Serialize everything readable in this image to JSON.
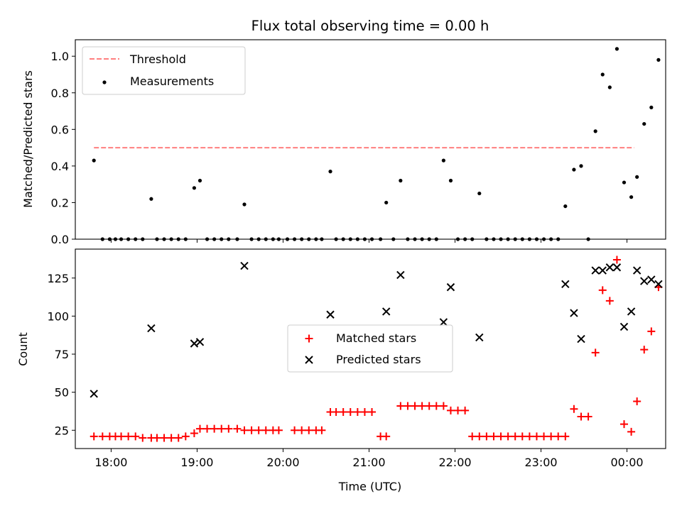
{
  "chart_data": [
    {
      "type": "scatter",
      "title": "Flux total observing time = 0.00 h",
      "xlabel": "",
      "ylabel": "Matched/Predicted stars",
      "xlim": [
        "17:35",
        "00:27"
      ],
      "ylim": [
        0,
        1.09
      ],
      "x_tick_labels": [],
      "y_ticks": [
        "0.0",
        "0.2",
        "0.4",
        "0.6",
        "0.8",
        "1.0"
      ],
      "grid": false,
      "legend_position": "upper left",
      "threshold": {
        "name": "Threshold",
        "value": 0.5,
        "x_start": "17:48",
        "x_end": "00:05",
        "color": "#ff7f7f",
        "style": "dashed"
      },
      "series": [
        {
          "name": "Measurements",
          "color": "#000000",
          "marker": "dot",
          "points": [
            [
              "17:48",
              0.43
            ],
            [
              "17:54",
              0.0
            ],
            [
              "17:59",
              0.0
            ],
            [
              "18:03",
              0.0
            ],
            [
              "18:07",
              0.0
            ],
            [
              "18:12",
              0.0
            ],
            [
              "18:17",
              0.0
            ],
            [
              "18:28",
              0.22
            ],
            [
              "18:22",
              0.0
            ],
            [
              "18:32",
              0.0
            ],
            [
              "18:37",
              0.0
            ],
            [
              "18:42",
              0.0
            ],
            [
              "18:47",
              0.0
            ],
            [
              "18:52",
              0.0
            ],
            [
              "18:58",
              0.28
            ],
            [
              "19:02",
              0.32
            ],
            [
              "19:07",
              0.0
            ],
            [
              "19:12",
              0.0
            ],
            [
              "19:17",
              0.0
            ],
            [
              "19:22",
              0.0
            ],
            [
              "19:28",
              0.0
            ],
            [
              "19:33",
              0.19
            ],
            [
              "19:38",
              0.0
            ],
            [
              "19:43",
              0.0
            ],
            [
              "19:48",
              0.0
            ],
            [
              "19:53",
              0.0
            ],
            [
              "19:57",
              0.0
            ],
            [
              "20:03",
              0.0
            ],
            [
              "20:08",
              0.0
            ],
            [
              "20:13",
              0.0
            ],
            [
              "20:18",
              0.0
            ],
            [
              "20:23",
              0.0
            ],
            [
              "20:27",
              0.0
            ],
            [
              "20:33",
              0.37
            ],
            [
              "20:37",
              0.0
            ],
            [
              "20:42",
              0.0
            ],
            [
              "20:47",
              0.0
            ],
            [
              "20:52",
              0.0
            ],
            [
              "20:57",
              0.0
            ],
            [
              "21:02",
              0.0
            ],
            [
              "21:08",
              0.0
            ],
            [
              "21:12",
              0.2
            ],
            [
              "21:17",
              0.0
            ],
            [
              "21:22",
              0.32
            ],
            [
              "21:27",
              0.0
            ],
            [
              "21:32",
              0.0
            ],
            [
              "21:37",
              0.0
            ],
            [
              "21:42",
              0.0
            ],
            [
              "21:47",
              0.0
            ],
            [
              "21:52",
              0.43
            ],
            [
              "21:57",
              0.32
            ],
            [
              "22:02",
              0.0
            ],
            [
              "22:07",
              0.0
            ],
            [
              "22:12",
              0.0
            ],
            [
              "22:17",
              0.25
            ],
            [
              "22:22",
              0.0
            ],
            [
              "22:27",
              0.0
            ],
            [
              "22:32",
              0.0
            ],
            [
              "22:37",
              0.0
            ],
            [
              "22:42",
              0.0
            ],
            [
              "22:47",
              0.0
            ],
            [
              "22:52",
              0.0
            ],
            [
              "22:57",
              0.0
            ],
            [
              "23:02",
              0.0
            ],
            [
              "23:07",
              0.0
            ],
            [
              "23:12",
              0.0
            ],
            [
              "23:17",
              0.18
            ],
            [
              "23:23",
              0.38
            ],
            [
              "23:28",
              0.4
            ],
            [
              "23:33",
              0.0
            ],
            [
              "23:38",
              0.59
            ],
            [
              "23:43",
              0.9
            ],
            [
              "23:48",
              0.83
            ],
            [
              "23:53",
              1.04
            ],
            [
              "23:58",
              0.31
            ],
            [
              "00:03",
              0.23
            ],
            [
              "00:07",
              0.34
            ],
            [
              "00:12",
              0.63
            ],
            [
              "00:17",
              0.72
            ],
            [
              "00:22",
              0.98
            ]
          ]
        }
      ]
    },
    {
      "type": "scatter",
      "title": "",
      "xlabel": "Time (UTC)",
      "ylabel": "Count",
      "xlim": [
        "17:35",
        "00:27"
      ],
      "ylim": [
        13,
        144
      ],
      "x_tick_labels": [
        "18:00",
        "19:00",
        "20:00",
        "21:00",
        "22:00",
        "23:00",
        "00:00"
      ],
      "y_ticks": [
        25,
        50,
        75,
        100,
        125
      ],
      "grid": false,
      "legend_position": "center",
      "series": [
        {
          "name": "Matched stars",
          "color": "#ff0000",
          "marker": "plus",
          "points": [
            [
              "17:48",
              21
            ],
            [
              "17:54",
              21
            ],
            [
              "17:59",
              21
            ],
            [
              "18:03",
              21
            ],
            [
              "18:07",
              21
            ],
            [
              "18:12",
              21
            ],
            [
              "18:17",
              21
            ],
            [
              "18:22",
              20
            ],
            [
              "18:28",
              20
            ],
            [
              "18:32",
              20
            ],
            [
              "18:37",
              20
            ],
            [
              "18:42",
              20
            ],
            [
              "18:47",
              20
            ],
            [
              "18:52",
              21
            ],
            [
              "18:58",
              23
            ],
            [
              "19:02",
              26
            ],
            [
              "19:07",
              26
            ],
            [
              "19:12",
              26
            ],
            [
              "19:17",
              26
            ],
            [
              "19:22",
              26
            ],
            [
              "19:28",
              26
            ],
            [
              "19:33",
              25
            ],
            [
              "19:38",
              25
            ],
            [
              "19:43",
              25
            ],
            [
              "19:48",
              25
            ],
            [
              "19:53",
              25
            ],
            [
              "19:57",
              25
            ],
            [
              "20:08",
              25
            ],
            [
              "20:13",
              25
            ],
            [
              "20:18",
              25
            ],
            [
              "20:23",
              25
            ],
            [
              "20:27",
              25
            ],
            [
              "20:33",
              37
            ],
            [
              "20:37",
              37
            ],
            [
              "20:42",
              37
            ],
            [
              "20:47",
              37
            ],
            [
              "20:52",
              37
            ],
            [
              "20:57",
              37
            ],
            [
              "21:02",
              37
            ],
            [
              "21:08",
              21
            ],
            [
              "21:12",
              21
            ],
            [
              "21:22",
              41
            ],
            [
              "21:27",
              41
            ],
            [
              "21:32",
              41
            ],
            [
              "21:37",
              41
            ],
            [
              "21:42",
              41
            ],
            [
              "21:47",
              41
            ],
            [
              "21:52",
              41
            ],
            [
              "21:57",
              38
            ],
            [
              "22:02",
              38
            ],
            [
              "22:07",
              38
            ],
            [
              "22:12",
              21
            ],
            [
              "22:17",
              21
            ],
            [
              "22:22",
              21
            ],
            [
              "22:27",
              21
            ],
            [
              "22:32",
              21
            ],
            [
              "22:37",
              21
            ],
            [
              "22:42",
              21
            ],
            [
              "22:47",
              21
            ],
            [
              "22:52",
              21
            ],
            [
              "22:57",
              21
            ],
            [
              "23:02",
              21
            ],
            [
              "23:07",
              21
            ],
            [
              "23:12",
              21
            ],
            [
              "23:17",
              21
            ],
            [
              "23:23",
              39
            ],
            [
              "23:28",
              34
            ],
            [
              "23:33",
              34
            ],
            [
              "23:38",
              76
            ],
            [
              "23:43",
              117
            ],
            [
              "23:48",
              110
            ],
            [
              "23:53",
              137
            ],
            [
              "23:58",
              29
            ],
            [
              "00:03",
              24
            ],
            [
              "00:07",
              44
            ],
            [
              "00:12",
              78
            ],
            [
              "00:17",
              90
            ],
            [
              "00:22",
              119
            ]
          ]
        },
        {
          "name": "Predicted stars",
          "color": "#000000",
          "marker": "x",
          "points": [
            [
              "17:48",
              49
            ],
            [
              "18:28",
              92
            ],
            [
              "18:58",
              82
            ],
            [
              "19:02",
              83
            ],
            [
              "19:33",
              133
            ],
            [
              "20:33",
              101
            ],
            [
              "21:12",
              103
            ],
            [
              "21:22",
              127
            ],
            [
              "21:52",
              96
            ],
            [
              "21:57",
              119
            ],
            [
              "22:17",
              86
            ],
            [
              "23:17",
              121
            ],
            [
              "23:23",
              102
            ],
            [
              "23:28",
              85
            ],
            [
              "23:38",
              130
            ],
            [
              "23:43",
              130
            ],
            [
              "23:48",
              132
            ],
            [
              "23:53",
              132
            ],
            [
              "23:58",
              93
            ],
            [
              "00:03",
              103
            ],
            [
              "00:07",
              130
            ],
            [
              "00:12",
              123
            ],
            [
              "00:17",
              124
            ],
            [
              "00:22",
              121
            ]
          ]
        }
      ]
    }
  ]
}
